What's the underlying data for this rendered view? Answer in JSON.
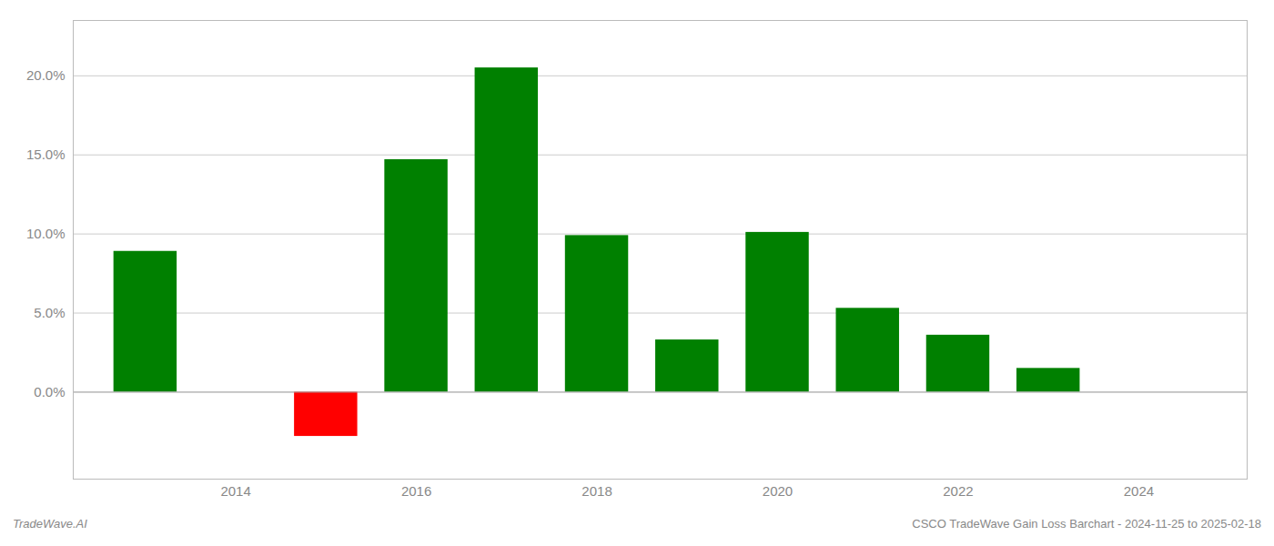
{
  "chart_data": {
    "type": "bar",
    "x": [
      2013,
      2015,
      2016,
      2017,
      2018,
      2019,
      2020,
      2021,
      2022,
      2023
    ],
    "values": [
      0.089,
      -0.028,
      0.147,
      0.205,
      0.099,
      0.033,
      0.101,
      0.053,
      0.036,
      0.015
    ],
    "colors": [
      "#008000",
      "#ff0000",
      "#008000",
      "#008000",
      "#008000",
      "#008000",
      "#008000",
      "#008000",
      "#008000",
      "#008000"
    ],
    "xlim": [
      2012.2,
      2025.2
    ],
    "xticks": [
      2014,
      2016,
      2018,
      2020,
      2022,
      2024
    ],
    "ylim": [
      -0.055,
      0.235
    ],
    "yticks": [
      {
        "value": 0.0,
        "label": "0.0%"
      },
      {
        "value": 0.05,
        "label": "5.0%"
      },
      {
        "value": 0.1,
        "label": "10.0%"
      },
      {
        "value": 0.15,
        "label": "15.0%"
      },
      {
        "value": 0.2,
        "label": "20.0%"
      }
    ],
    "grid": true,
    "annotations": [
      "TradeWave.AI",
      "CSCO TradeWave Gain Loss Barchart - 2024-11-25 to 2025-02-18"
    ]
  }
}
